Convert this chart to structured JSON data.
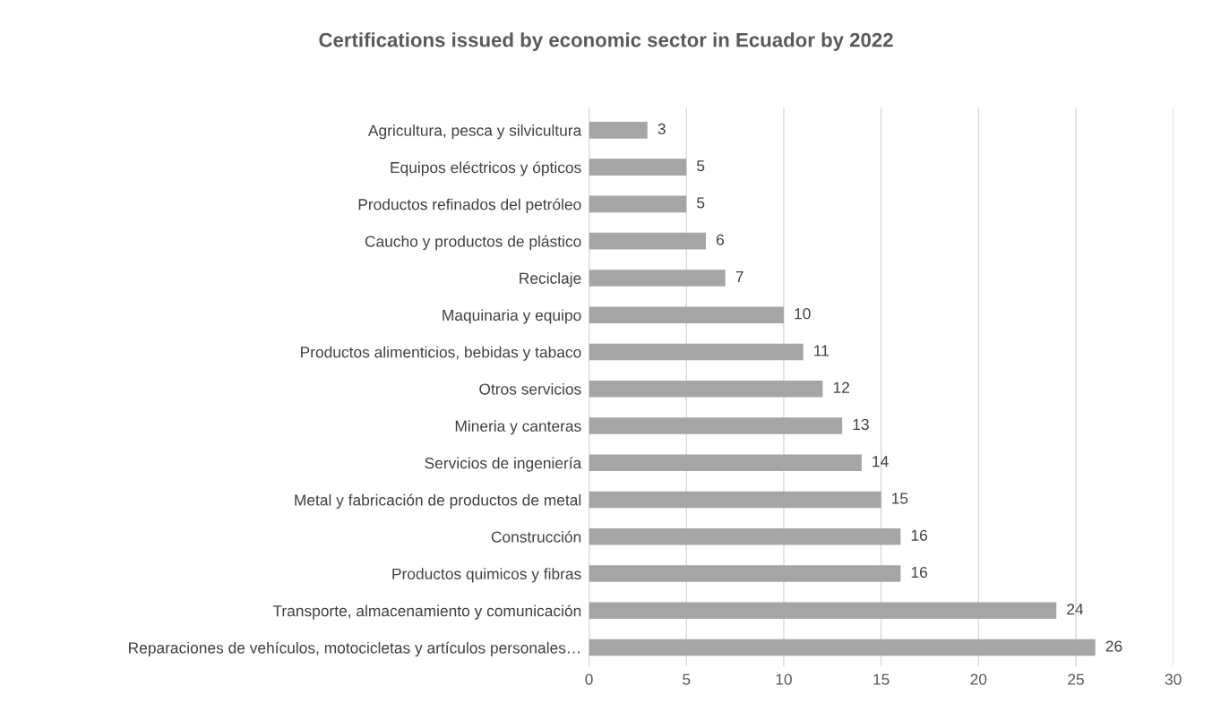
{
  "chart_data": {
    "type": "bar",
    "orientation": "horizontal",
    "title": "Certifications issued by economic sector in Ecuador by 2022",
    "categories": [
      "Agricultura, pesca y silvicultura",
      "Equipos eléctricos y ópticos",
      "Productos refinados del petróleo",
      "Caucho y productos de plástico",
      "Reciclaje",
      "Maquinaria y equipo",
      "Productos alimenticios, bebidas y tabaco",
      "Otros servicios",
      "Mineria y canteras",
      "Servicios de ingeniería",
      "Metal y fabricación de productos de metal",
      "Construcción",
      "Productos quimicos y fibras",
      "Transporte, almacenamiento y comunicación",
      "Reparaciones de vehículos, motocicletas y artículos personales…"
    ],
    "values": [
      3,
      5,
      5,
      6,
      7,
      10,
      11,
      12,
      13,
      14,
      15,
      16,
      16,
      24,
      26
    ],
    "color": "#a5a5a5",
    "xlim": [
      0,
      30
    ],
    "xticks": [
      0,
      5,
      10,
      15,
      20,
      25,
      30
    ],
    "grid": "x",
    "data_labels": true
  }
}
